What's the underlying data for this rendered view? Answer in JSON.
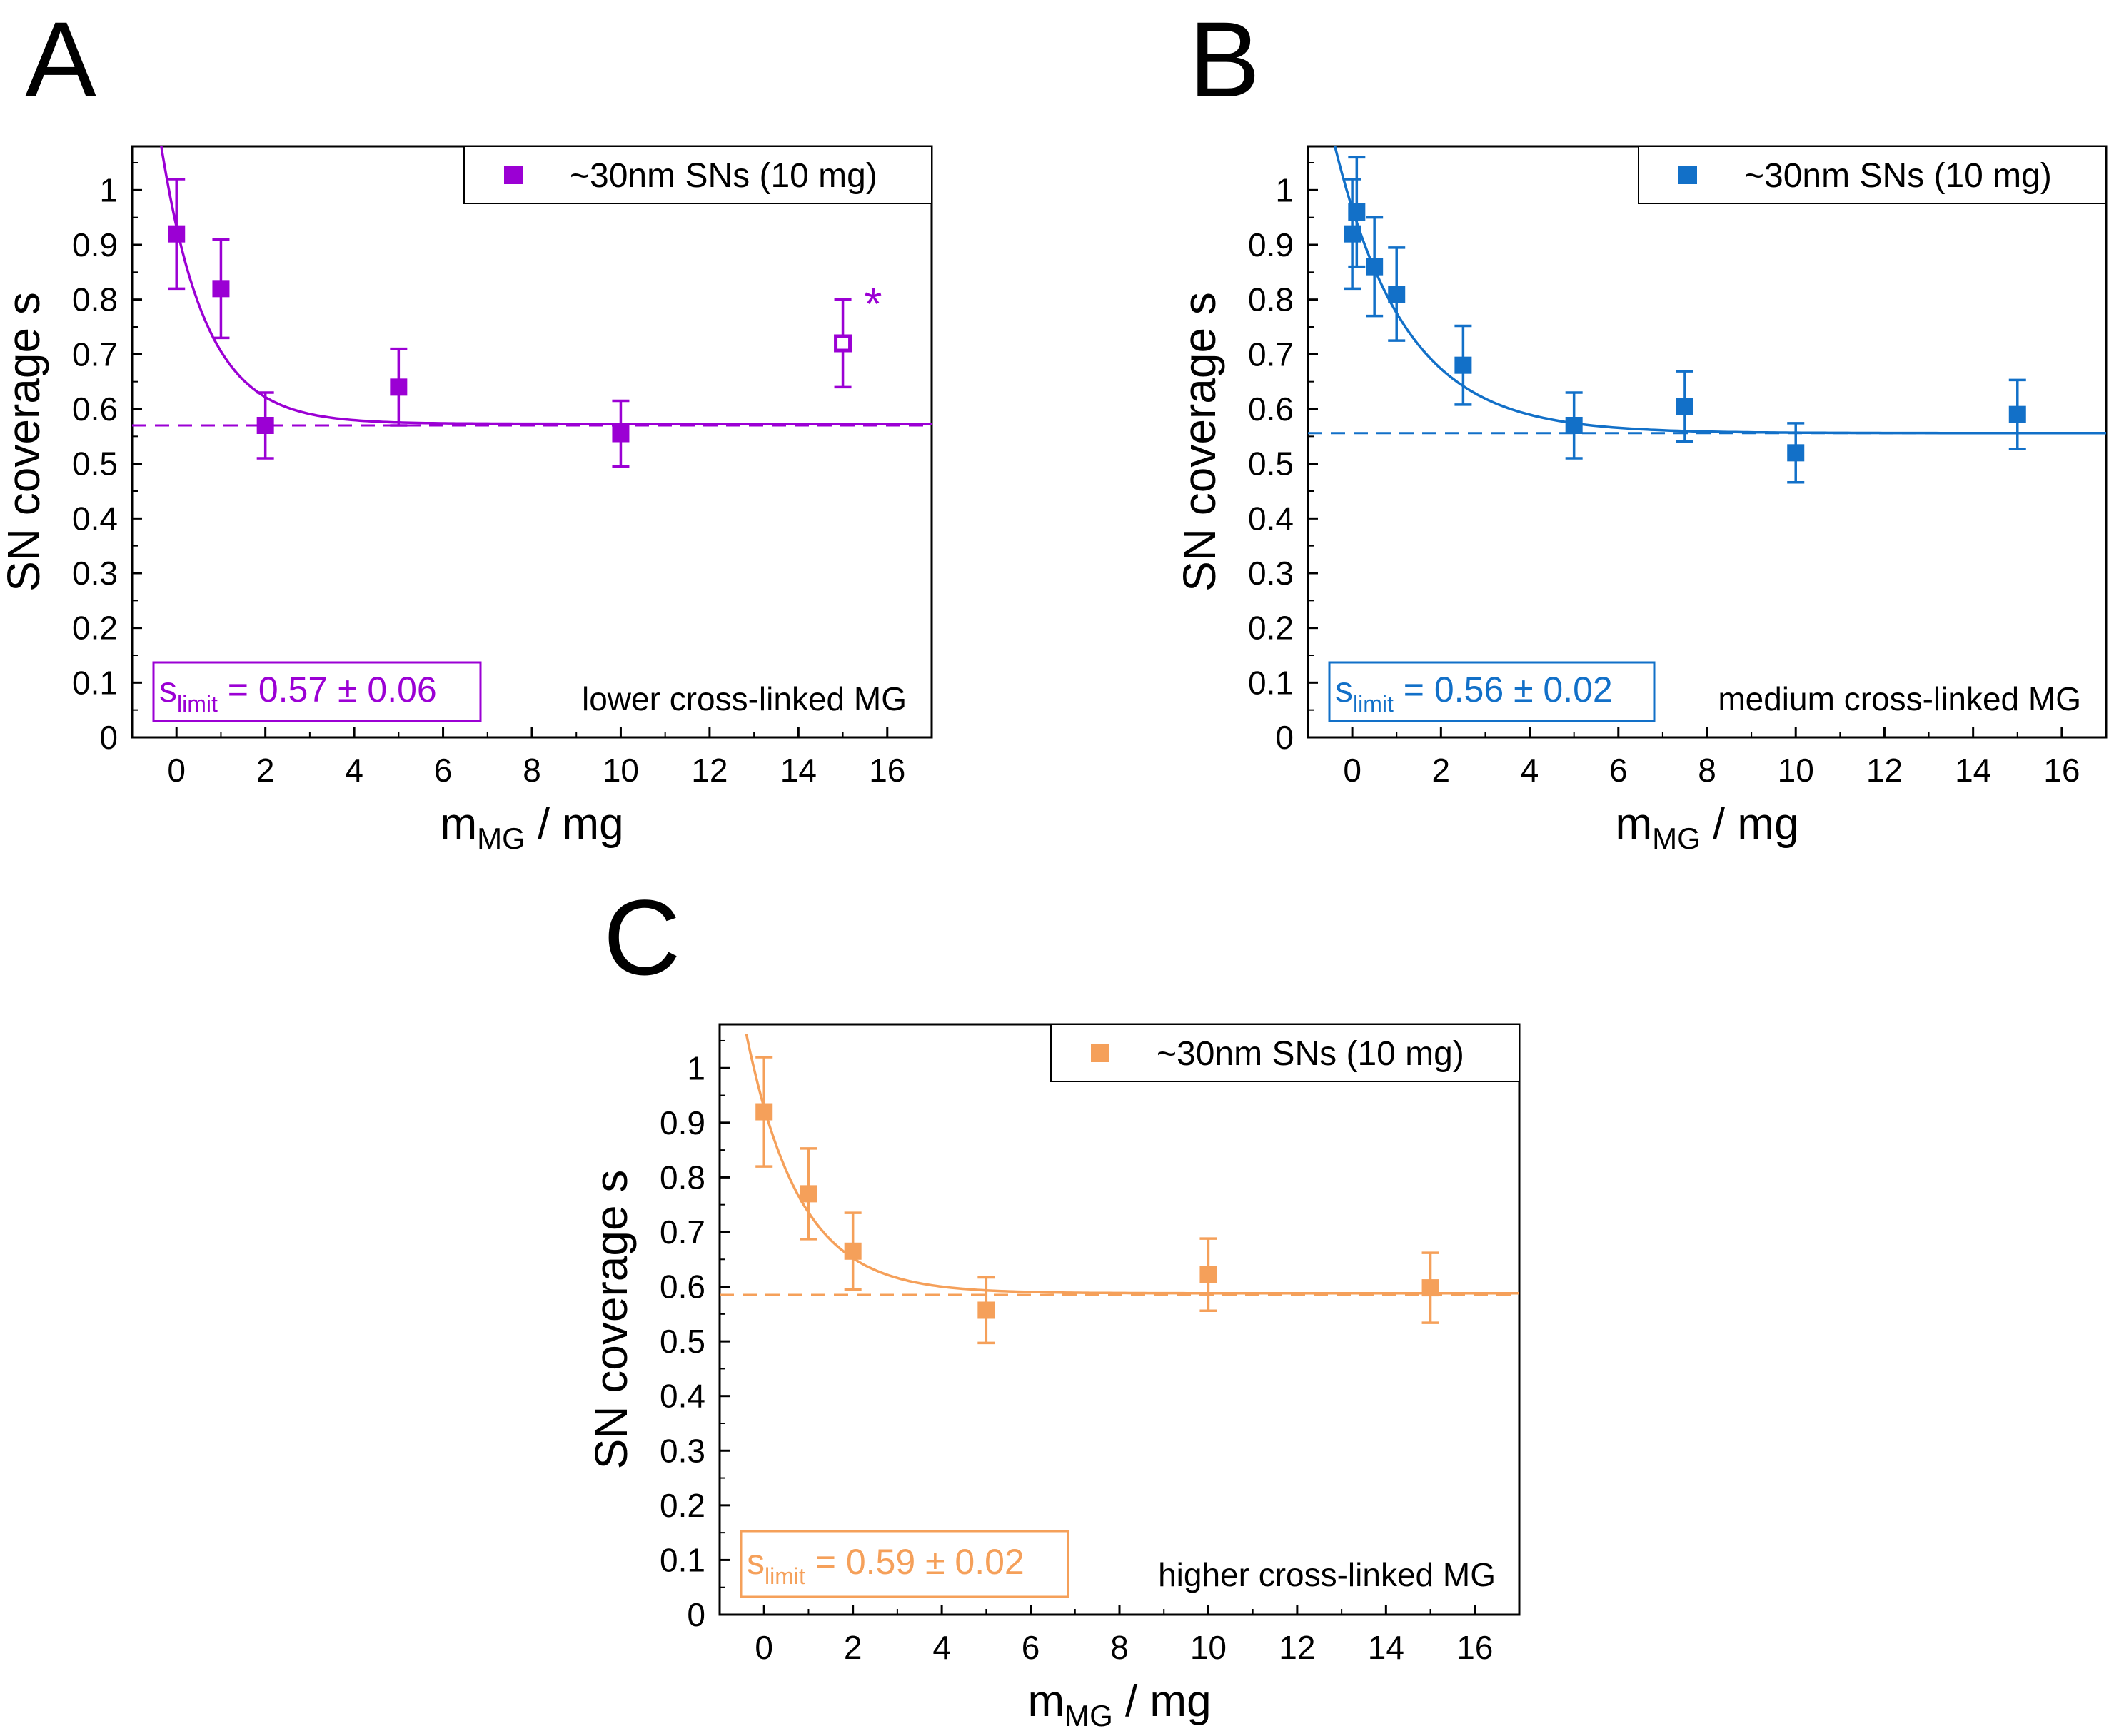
{
  "chart_data": [
    {
      "type": "scatter",
      "panel_label": "A",
      "color": "#9b00d4",
      "xlabel": "m",
      "xlabel_sub": "MG",
      "xlabel_suffix": " / mg",
      "ylabel": "SN coverage s",
      "xlim": [
        -1,
        17
      ],
      "ylim": [
        0,
        1.08
      ],
      "xticks": [
        0,
        2,
        4,
        6,
        8,
        10,
        12,
        14,
        16
      ],
      "yticks": [
        0,
        0.1,
        0.2,
        0.3,
        0.4,
        0.5,
        0.6,
        0.7,
        0.8,
        0.9,
        1
      ],
      "ytick_labels": [
        "0",
        "0.1",
        "0.2",
        "0.3",
        "0.4",
        "0.5",
        "0.6",
        "0.7",
        "0.8",
        "0.9",
        "1"
      ],
      "legend": "~30nm SNs (10 mg)",
      "series": [
        {
          "name": "~30nm SNs (10 mg)",
          "points": [
            {
              "x": 0,
              "y": 0.92,
              "err": 0.1
            },
            {
              "x": 1,
              "y": 0.82,
              "err": 0.09
            },
            {
              "x": 2,
              "y": 0.57,
              "err": 0.06
            },
            {
              "x": 5,
              "y": 0.64,
              "err": 0.07
            },
            {
              "x": 10,
              "y": 0.555,
              "err": 0.06
            }
          ],
          "outliers": [
            {
              "x": 15,
              "y": 0.72,
              "err": 0.08,
              "marker": "open-square",
              "annotation": "*"
            }
          ]
        }
      ],
      "fit": {
        "model": "exponential decay",
        "limit": 0.573,
        "amplitude": 0.36,
        "decay_mg": 1.0
      },
      "limit_line": 0.57,
      "slimit_label": {
        "s": "s",
        "sub": "limit",
        "text": " = 0.57 ± 0.06"
      },
      "annotation": "lower cross-linked MG"
    },
    {
      "type": "scatter",
      "panel_label": "B",
      "color": "#1270c8",
      "xlabel": "m",
      "xlabel_sub": "MG",
      "xlabel_suffix": " / mg",
      "ylabel": "SN coverage s",
      "xlim": [
        -1,
        17
      ],
      "ylim": [
        0,
        1.08
      ],
      "xticks": [
        0,
        2,
        4,
        6,
        8,
        10,
        12,
        14,
        16
      ],
      "yticks": [
        0,
        0.1,
        0.2,
        0.3,
        0.4,
        0.5,
        0.6,
        0.7,
        0.8,
        0.9,
        1
      ],
      "ytick_labels": [
        "0",
        "0.1",
        "0.2",
        "0.3",
        "0.4",
        "0.5",
        "0.6",
        "0.7",
        "0.8",
        "0.9",
        "1"
      ],
      "legend": "~30nm SNs (10 mg)",
      "series": [
        {
          "name": "~30nm SNs (10 mg)",
          "points": [
            {
              "x": 0,
              "y": 0.92,
              "err": 0.1
            },
            {
              "x": 0.1,
              "y": 0.96,
              "err": 0.1
            },
            {
              "x": 0.5,
              "y": 0.86,
              "err": 0.09
            },
            {
              "x": 1,
              "y": 0.81,
              "err": 0.085
            },
            {
              "x": 2.5,
              "y": 0.68,
              "err": 0.072
            },
            {
              "x": 5,
              "y": 0.57,
              "err": 0.06
            },
            {
              "x": 7.5,
              "y": 0.605,
              "err": 0.064
            },
            {
              "x": 10,
              "y": 0.52,
              "err": 0.054
            },
            {
              "x": 15,
              "y": 0.59,
              "err": 0.063
            }
          ],
          "outliers": []
        }
      ],
      "fit": {
        "model": "exponential decay",
        "limit": 0.556,
        "amplitude": 0.41,
        "decay_mg": 1.6
      },
      "limit_line": 0.556,
      "slimit_label": {
        "s": "s",
        "sub": "limit",
        "text": " = 0.56 ± 0.02"
      },
      "annotation": "medium cross-linked MG"
    },
    {
      "type": "scatter",
      "panel_label": "C",
      "color": "#f5a05a",
      "xlabel": "m",
      "xlabel_sub": "MG",
      "xlabel_suffix": " / mg",
      "ylabel": "SN coverage s",
      "xlim": [
        -1,
        17
      ],
      "ylim": [
        0,
        1.08
      ],
      "xticks": [
        0,
        2,
        4,
        6,
        8,
        10,
        12,
        14,
        16
      ],
      "yticks": [
        0,
        0.1,
        0.2,
        0.3,
        0.4,
        0.5,
        0.6,
        0.7,
        0.8,
        0.9,
        1
      ],
      "ytick_labels": [
        "0",
        "0.1",
        "0.2",
        "0.3",
        "0.4",
        "0.5",
        "0.6",
        "0.7",
        "0.8",
        "0.9",
        "1"
      ],
      "legend": "~30nm SNs (10 mg)",
      "series": [
        {
          "name": "~30nm SNs (10 mg)",
          "points": [
            {
              "x": 0,
              "y": 0.92,
              "err": 0.1
            },
            {
              "x": 1,
              "y": 0.77,
              "err": 0.083
            },
            {
              "x": 2,
              "y": 0.665,
              "err": 0.07
            },
            {
              "x": 5,
              "y": 0.557,
              "err": 0.06
            },
            {
              "x": 10,
              "y": 0.622,
              "err": 0.066
            },
            {
              "x": 15,
              "y": 0.598,
              "err": 0.064
            }
          ],
          "outliers": []
        }
      ],
      "fit": {
        "model": "exponential decay",
        "limit": 0.588,
        "amplitude": 0.34,
        "decay_mg": 1.2
      },
      "limit_line": 0.585,
      "slimit_label": {
        "s": "s",
        "sub": "limit",
        "text": " = 0.59 ± 0.02"
      },
      "annotation": "higher cross-linked MG"
    }
  ]
}
